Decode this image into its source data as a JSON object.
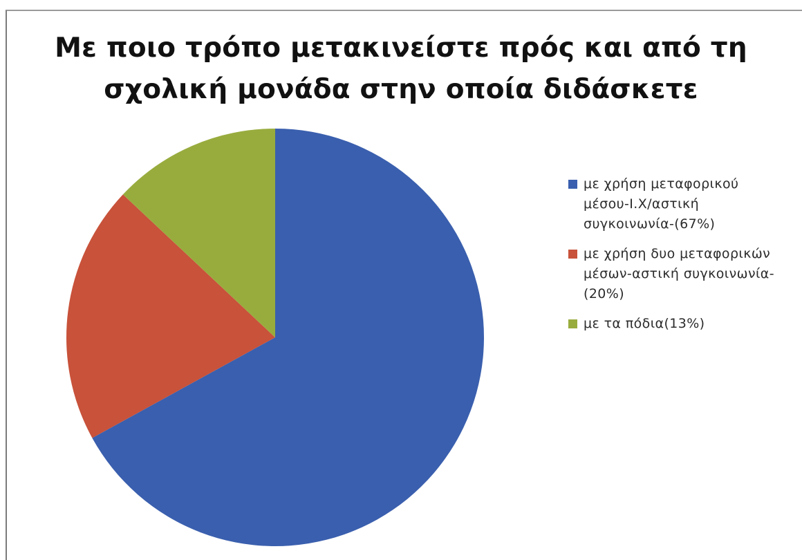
{
  "chart_data": {
    "type": "pie",
    "title_lines": [
      "Με ποιο τρόπο μετακινείστε πρός και από τη",
      "σχολική μονάδα στην οποία διδάσκετε"
    ],
    "slices": [
      {
        "label": "με χρήση μεταφορικού μέσου-Ι.Χ/αστική συγκοινωνία-(67%)",
        "value": 67,
        "color": "#3a5fae"
      },
      {
        "label": "με χρήση δυο μεταφορικών μέσων-αστική συγκοινωνία-(20%)",
        "value": 20,
        "color": "#c8523a"
      },
      {
        "label": "με τα πόδια(13%)",
        "value": 13,
        "color": "#98ac3e"
      }
    ],
    "start_angle": "12 o'clock",
    "direction": "clockwise",
    "legend_position": "right"
  },
  "legend": {
    "items": [
      {
        "lines": [
          "με χρήση μεταφορικού",
          "μέσου-Ι.Χ/αστική",
          "συγκοινωνία-(67%)"
        ],
        "color": "#3a5fae"
      },
      {
        "lines": [
          "με χρήση δυο μεταφορικών",
          "μέσων-αστική συγκοινωνία-",
          "(20%)"
        ],
        "color": "#c8523a"
      },
      {
        "lines": [
          "με τα πόδια(13%)"
        ],
        "color": "#98ac3e"
      }
    ]
  }
}
